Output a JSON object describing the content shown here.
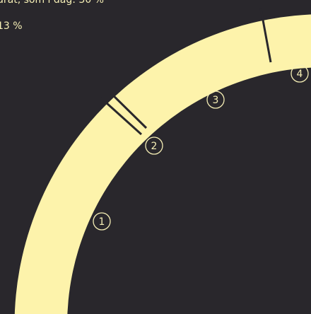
{
  "header": {
    "line1": "drat, som i dag: 30 %",
    "line2": "13 %"
  },
  "markers": [
    "1",
    "2",
    "3",
    "4"
  ]
}
